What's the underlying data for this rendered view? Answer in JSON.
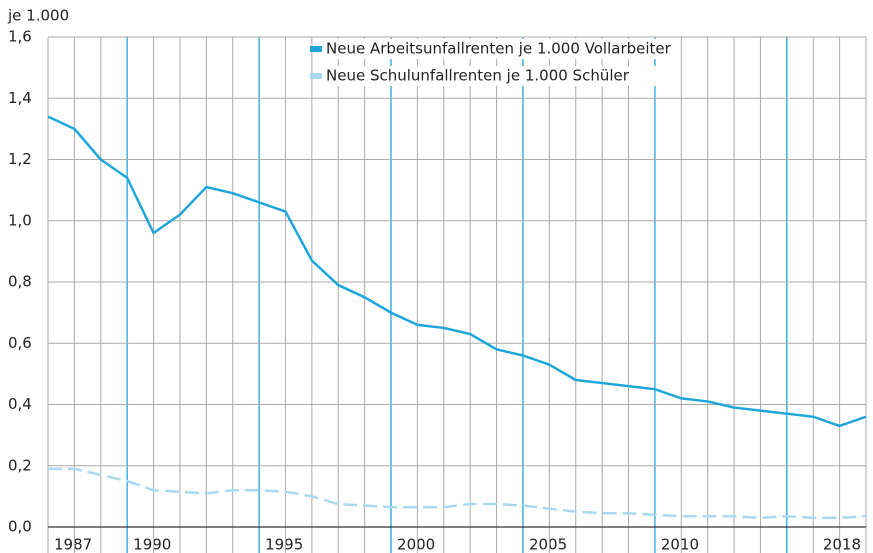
{
  "chart_data": {
    "type": "line",
    "y_unit_label": "je 1.000",
    "categories": [
      "1987",
      null,
      null,
      "1990",
      null,
      null,
      null,
      null,
      "1995",
      null,
      null,
      null,
      null,
      "2000",
      null,
      null,
      null,
      null,
      "2005",
      null,
      null,
      null,
      null,
      "2010",
      null,
      null,
      null,
      null,
      null,
      null,
      null,
      "2018"
    ],
    "series": [
      {
        "name": "Neue Arbeitsunfallrenten je 1.000 Vollarbeiter",
        "color": "#1ea6dc",
        "dashed": false,
        "values": [
          1.34,
          1.3,
          1.2,
          1.14,
          0.96,
          1.02,
          1.11,
          1.09,
          1.06,
          1.03,
          0.87,
          0.79,
          0.75,
          0.7,
          0.66,
          0.65,
          0.63,
          0.58,
          0.56,
          0.53,
          0.48,
          0.47,
          0.46,
          0.45,
          0.42,
          0.41,
          0.39,
          0.38,
          0.37,
          0.36,
          0.33,
          0.36
        ]
      },
      {
        "name": "Neue Schulunfallrenten je 1.000 Schüler",
        "color": "#a8d9f0",
        "dashed": true,
        "values": [
          0.19,
          0.19,
          0.17,
          0.15,
          0.12,
          0.115,
          0.11,
          0.12,
          0.12,
          0.115,
          0.1,
          0.075,
          0.07,
          0.065,
          0.065,
          0.065,
          0.075,
          0.075,
          0.07,
          0.06,
          0.05,
          0.045,
          0.045,
          0.04,
          0.035,
          0.035,
          0.035,
          0.03,
          0.035,
          0.03,
          0.03,
          0.035
        ]
      }
    ],
    "ylim": [
      0,
      1.6
    ],
    "yticks": [
      {
        "value": 0,
        "label": "0,0"
      },
      {
        "value": 0.2,
        "label": "0,2"
      },
      {
        "value": 0.4,
        "label": "0,4"
      },
      {
        "value": 0.6,
        "label": "0,6"
      },
      {
        "value": 0.8,
        "label": "0,8"
      },
      {
        "value": 1.0,
        "label": "1,0"
      },
      {
        "value": 1.2,
        "label": "1,2"
      },
      {
        "value": 1.4,
        "label": "1,4"
      },
      {
        "value": 1.6,
        "label": "1,6"
      }
    ],
    "grid": true,
    "legend": "top"
  }
}
